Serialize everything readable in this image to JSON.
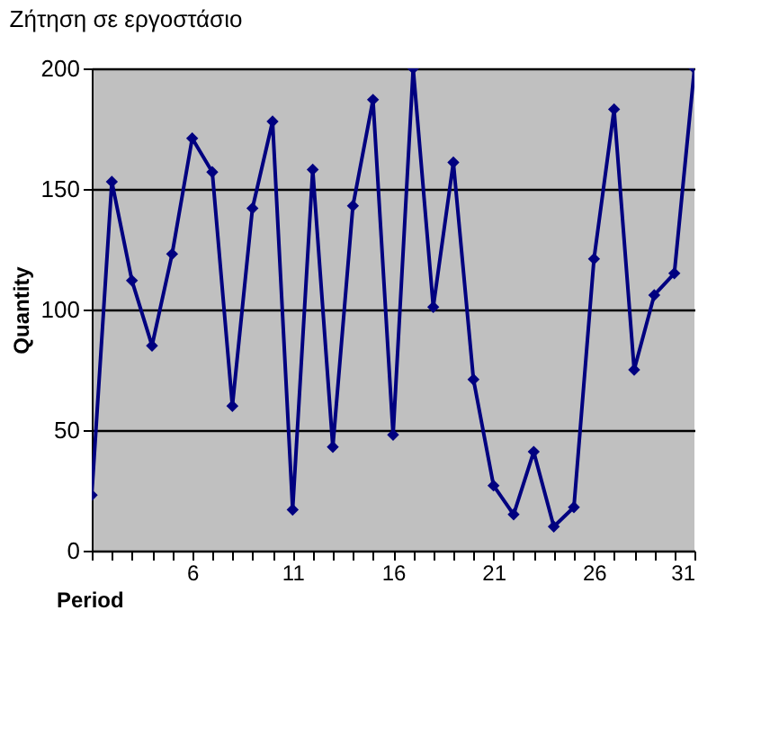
{
  "chart_data": {
    "type": "line",
    "title": "Ζήτηση σε εργοστάσιο",
    "xlabel": "Period",
    "ylabel": "Quantity",
    "x": [
      1,
      2,
      3,
      4,
      5,
      6,
      7,
      8,
      9,
      10,
      11,
      12,
      13,
      14,
      15,
      16,
      17,
      18,
      19,
      20,
      21,
      22,
      23,
      24,
      25,
      26,
      27,
      28,
      29,
      30,
      31
    ],
    "series": [
      {
        "color": "#000080",
        "values": [
          23,
          153,
          112,
          85,
          123,
          171,
          157,
          60,
          142,
          178,
          17,
          158,
          43,
          143,
          187,
          48,
          200,
          101,
          161,
          71,
          27,
          15,
          41,
          10,
          18,
          121,
          183,
          75,
          106,
          115,
          200
        ]
      }
    ],
    "xlim": [
      1,
      31
    ],
    "xticks": [
      {
        "value": 1,
        "label": null
      },
      {
        "value": 2,
        "label": null
      },
      {
        "value": 3,
        "label": null
      },
      {
        "value": 4,
        "label": null
      },
      {
        "value": 5,
        "label": null
      },
      6,
      {
        "value": 7,
        "label": null
      },
      {
        "value": 8,
        "label": null
      },
      {
        "value": 9,
        "label": null
      },
      {
        "value": 10,
        "label": null
      },
      11,
      {
        "value": 12,
        "label": null
      },
      {
        "value": 13,
        "label": null
      },
      {
        "value": 14,
        "label": null
      },
      {
        "value": 15,
        "label": null
      },
      16,
      {
        "value": 17,
        "label": null
      },
      {
        "value": 18,
        "label": null
      },
      {
        "value": 19,
        "label": null
      },
      {
        "value": 20,
        "label": null
      },
      21,
      {
        "value": 22,
        "label": null
      },
      {
        "value": 23,
        "label": null
      },
      {
        "value": 24,
        "label": null
      },
      {
        "value": 25,
        "label": null
      },
      26,
      {
        "value": 27,
        "label": null
      },
      {
        "value": 28,
        "label": null
      },
      {
        "value": 29,
        "label": null
      },
      {
        "value": 30,
        "label": null
      },
      31
    ],
    "ylim": [
      0,
      200
    ],
    "yticks": [
      0,
      50,
      100,
      150,
      200
    ],
    "grid": "y",
    "marker": "diamond",
    "line_style": "solid"
  }
}
